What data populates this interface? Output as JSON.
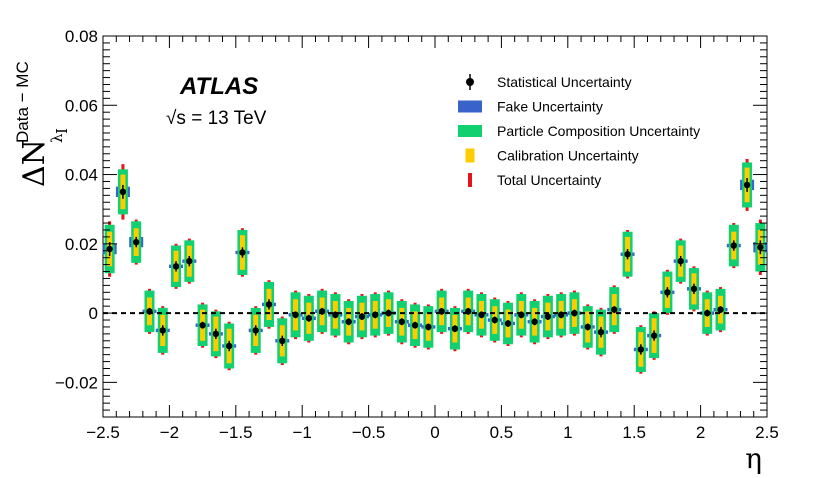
{
  "chart_data": {
    "type": "scatter",
    "title": "",
    "experiment": "ATLAS",
    "energy_label": "√s = 13 TeV",
    "xlabel": "η",
    "ylabel": {
      "main": "ΔN",
      "superscript": "Data − MC",
      "subscript": "λ",
      "subsubscript": "I"
    },
    "xlim": [
      -2.5,
      2.5
    ],
    "ylim": [
      -0.03,
      0.08
    ],
    "xticks": [
      -2.5,
      -2,
      -1.5,
      -1,
      -0.5,
      0,
      0.5,
      1,
      1.5,
      2,
      2.5
    ],
    "xtick_labels": [
      "−2.5",
      "−2",
      "−1.5",
      "−1",
      "−0.5",
      "0",
      "0.5",
      "1",
      "1.5",
      "2",
      "2.5"
    ],
    "yticks": [
      -0.02,
      0,
      0.02,
      0.04,
      0.06,
      0.08
    ],
    "ytick_labels": [
      "−0.02",
      "0",
      "0.02",
      "0.04",
      "0.06",
      "0.08"
    ],
    "reference_line": 0,
    "legend": {
      "placement": "top-right",
      "entries": [
        {
          "label": "Statistical Uncertainty",
          "kind": "marker"
        },
        {
          "label": "Fake Uncertainty",
          "kind": "box",
          "color": "#3a63c9"
        },
        {
          "label": "Particle Composition Uncertainty",
          "kind": "box",
          "color": "#10d070"
        },
        {
          "label": "Calibration Uncertainty",
          "kind": "box",
          "color": "#ffcc00"
        },
        {
          "label": "Total Uncertainty",
          "kind": "box",
          "color": "#e8141c"
        }
      ]
    },
    "colors": {
      "fake": "#3a63c9",
      "composition": "#10d070",
      "calibration": "#ffcc00",
      "total": "#e8141c",
      "marker": "#000000"
    },
    "series": [
      {
        "name": "Data - MC",
        "x": [
          -2.45,
          -2.35,
          -2.25,
          -2.15,
          -2.05,
          -1.95,
          -1.85,
          -1.75,
          -1.65,
          -1.55,
          -1.45,
          -1.35,
          -1.25,
          -1.15,
          -1.05,
          -0.95,
          -0.85,
          -0.75,
          -0.65,
          -0.55,
          -0.45,
          -0.35,
          -0.25,
          -0.15,
          -0.05,
          0.05,
          0.15,
          0.25,
          0.35,
          0.45,
          0.55,
          0.65,
          0.75,
          0.85,
          0.95,
          1.05,
          1.15,
          1.25,
          1.35,
          1.45,
          1.55,
          1.65,
          1.75,
          1.85,
          1.95,
          2.05,
          2.15,
          2.25,
          2.35,
          2.45
        ],
        "y": [
          0.0185,
          0.035,
          0.0205,
          0.0005,
          -0.005,
          0.0135,
          0.015,
          -0.0035,
          -0.006,
          -0.0095,
          0.0175,
          -0.005,
          0.0025,
          -0.008,
          -0.0005,
          -0.0015,
          0.0005,
          -0.0005,
          -0.0025,
          -0.001,
          -0.0005,
          0.0,
          -0.0025,
          -0.0035,
          -0.004,
          0.0005,
          -0.0045,
          0.0005,
          -0.0005,
          -0.002,
          -0.003,
          -0.0005,
          -0.0025,
          -0.001,
          -0.0005,
          0.0,
          -0.004,
          -0.0055,
          0.001,
          0.017,
          -0.0105,
          -0.0065,
          0.006,
          0.015,
          0.007,
          0.0,
          0.001,
          0.0195,
          0.037,
          0.019
        ],
        "stat_err": [
          0.002,
          0.002,
          0.0015,
          0.001,
          0.0015,
          0.0015,
          0.0015,
          0.001,
          0.0015,
          0.0015,
          0.0015,
          0.0015,
          0.0015,
          0.0015,
          0.001,
          0.001,
          0.001,
          0.001,
          0.001,
          0.001,
          0.001,
          0.001,
          0.001,
          0.001,
          0.001,
          0.001,
          0.001,
          0.001,
          0.001,
          0.001,
          0.001,
          0.001,
          0.001,
          0.001,
          0.001,
          0.001,
          0.001,
          0.0015,
          0.001,
          0.0015,
          0.0015,
          0.0015,
          0.0015,
          0.0015,
          0.0015,
          0.001,
          0.001,
          0.0015,
          0.002,
          0.002
        ],
        "fake_err": [
          0.0015,
          0.0015,
          0.0015,
          0.0005,
          0.0005,
          0.0005,
          0.0005,
          0.0005,
          0.0005,
          0.0005,
          0.0005,
          0.0005,
          0.0005,
          0.0005,
          0.0005,
          0.0005,
          0.0005,
          0.0005,
          0.0005,
          0.0005,
          0.0005,
          0.0005,
          0.0005,
          0.0005,
          0.0005,
          0.0005,
          0.0005,
          0.0005,
          0.0005,
          0.0005,
          0.0005,
          0.0005,
          0.0005,
          0.0005,
          0.0005,
          0.0005,
          0.0005,
          0.0005,
          0.0005,
          0.0005,
          0.0005,
          0.0005,
          0.0005,
          0.0005,
          0.0005,
          0.0005,
          0.0005,
          0.0005,
          0.0015,
          0.0015
        ],
        "composition_err": [
          0.007,
          0.0065,
          0.006,
          0.006,
          0.0065,
          0.006,
          0.006,
          0.006,
          0.0065,
          0.0065,
          0.0065,
          0.0065,
          0.0065,
          0.0065,
          0.0065,
          0.0065,
          0.006,
          0.006,
          0.006,
          0.006,
          0.006,
          0.006,
          0.006,
          0.006,
          0.006,
          0.006,
          0.006,
          0.006,
          0.006,
          0.006,
          0.006,
          0.006,
          0.006,
          0.006,
          0.006,
          0.006,
          0.006,
          0.0065,
          0.0065,
          0.0065,
          0.0065,
          0.0065,
          0.006,
          0.006,
          0.006,
          0.006,
          0.006,
          0.006,
          0.0065,
          0.007
        ],
        "calibration_err": [
          0.005,
          0.005,
          0.004,
          0.004,
          0.0045,
          0.0045,
          0.0045,
          0.0045,
          0.005,
          0.005,
          0.005,
          0.0045,
          0.0045,
          0.0045,
          0.0045,
          0.0045,
          0.004,
          0.004,
          0.004,
          0.004,
          0.004,
          0.004,
          0.004,
          0.004,
          0.004,
          0.004,
          0.004,
          0.004,
          0.004,
          0.004,
          0.004,
          0.004,
          0.004,
          0.004,
          0.004,
          0.004,
          0.0045,
          0.0045,
          0.0045,
          0.005,
          0.005,
          0.005,
          0.0045,
          0.0045,
          0.0045,
          0.004,
          0.004,
          0.004,
          0.005,
          0.005
        ],
        "total_err": [
          0.008,
          0.008,
          0.0065,
          0.0065,
          0.007,
          0.0065,
          0.0065,
          0.0065,
          0.007,
          0.007,
          0.007,
          0.007,
          0.007,
          0.007,
          0.007,
          0.007,
          0.0065,
          0.0065,
          0.0065,
          0.0065,
          0.0065,
          0.0065,
          0.0065,
          0.0065,
          0.0065,
          0.0065,
          0.0065,
          0.0065,
          0.0065,
          0.0065,
          0.0065,
          0.0065,
          0.0065,
          0.0065,
          0.0065,
          0.0065,
          0.0065,
          0.007,
          0.007,
          0.007,
          0.007,
          0.007,
          0.0065,
          0.0065,
          0.0065,
          0.0065,
          0.0065,
          0.0065,
          0.0075,
          0.008
        ]
      }
    ]
  }
}
